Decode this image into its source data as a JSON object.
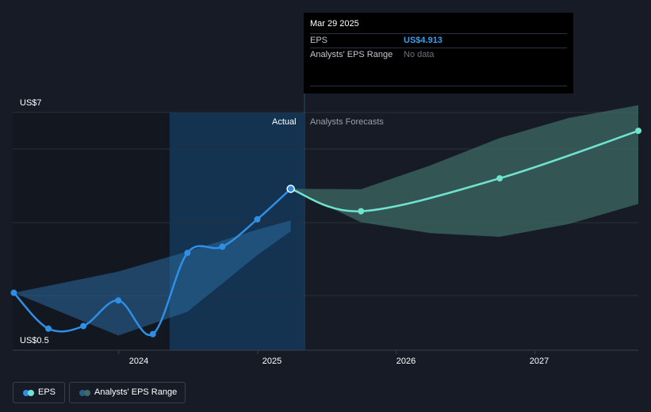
{
  "tooltip": {
    "date": "Mar 29 2025",
    "eps_label": "EPS",
    "eps_value": "US$4.913",
    "range_label": "Analysts' EPS Range",
    "range_value": "No data"
  },
  "labels": {
    "actual": "Actual",
    "forecast": "Analysts Forecasts"
  },
  "legend": {
    "eps": "EPS",
    "range": "Analysts' EPS Range"
  },
  "colors": {
    "background": "#161b26",
    "eps_actual": "#2f8fe6",
    "eps_forecast": "#6fe3cf",
    "range_band": "#3d6b66"
  },
  "chart_data": {
    "type": "line",
    "x_ticks": [
      "2024",
      "2025",
      "2026",
      "2027"
    ],
    "y_ticks": [
      "US$7",
      "US$0.5"
    ],
    "ylim": [
      0.5,
      7
    ],
    "xlim": [
      "2023-03-28",
      "2027-09-30"
    ],
    "grid": true,
    "highlighted_point": {
      "x": "2025-03-29",
      "y": 4.913
    },
    "series": [
      {
        "name": "EPS",
        "kind": "actual",
        "x": [
          "2023-03-31",
          "2023-06-30",
          "2023-09-30",
          "2023-12-31",
          "2024-03-31",
          "2024-06-30",
          "2024-09-30",
          "2024-12-31",
          "2025-03-29"
        ],
        "y": [
          2.07,
          1.09,
          1.16,
          1.86,
          0.94,
          3.16,
          3.33,
          4.08,
          4.913
        ]
      },
      {
        "name": "EPS",
        "kind": "forecast",
        "x": [
          "2025-03-29",
          "2025-09-30",
          "2026-09-30",
          "2027-09-30"
        ],
        "y": [
          4.913,
          4.3,
          5.2,
          6.5
        ]
      }
    ],
    "range_band_past": {
      "x": [
        "2023-03-31",
        "2023-12-31",
        "2024-06-30",
        "2024-12-31",
        "2025-03-29"
      ],
      "upper": [
        2.07,
        2.65,
        3.2,
        3.8,
        4.05
      ],
      "lower": [
        2.07,
        0.9,
        1.55,
        3.1,
        3.75
      ]
    },
    "range_band_forecast": {
      "x": [
        "2025-03-29",
        "2025-09-30",
        "2026-03-31",
        "2026-09-30",
        "2027-03-31",
        "2027-09-30"
      ],
      "upper": [
        4.913,
        4.9,
        5.55,
        6.3,
        6.85,
        7.2
      ],
      "lower": [
        4.913,
        4.0,
        3.7,
        3.6,
        3.95,
        4.5
      ]
    }
  }
}
